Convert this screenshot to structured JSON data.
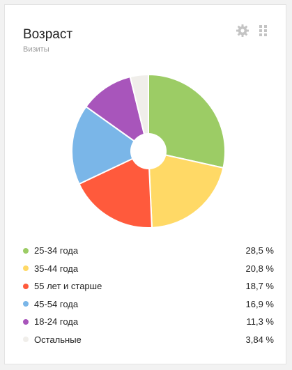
{
  "widget": {
    "title": "Возраст",
    "subtitle": "Визиты",
    "icons": [
      "gear-icon",
      "drag-handle-icon"
    ]
  },
  "colors": {
    "25-34": "#9ccc65",
    "35-44": "#ffd966",
    "55+": "#ff5a3c",
    "45-54": "#7ab6e8",
    "18-24": "#a855bb",
    "other": "#f0eeea"
  },
  "chart_data": {
    "type": "pie",
    "donut": true,
    "legend_position": "bottom",
    "slices": [
      {
        "label": "25-34 года",
        "value": 28.5,
        "value_label": "28,5 %",
        "color": "#9ccc65"
      },
      {
        "label": "35-44 года",
        "value": 20.8,
        "value_label": "20,8 %",
        "color": "#ffd966"
      },
      {
        "label": "55 лет и старше",
        "value": 18.7,
        "value_label": "18,7 %",
        "color": "#ff5a3c"
      },
      {
        "label": "45-54 года",
        "value": 16.9,
        "value_label": "16,9 %",
        "color": "#7ab6e8"
      },
      {
        "label": "18-24 года",
        "value": 11.3,
        "value_label": "11,3 %",
        "color": "#a855bb"
      },
      {
        "label": "Остальные",
        "value": 3.84,
        "value_label": "3,84 %",
        "color": "#f0eeea"
      }
    ]
  }
}
